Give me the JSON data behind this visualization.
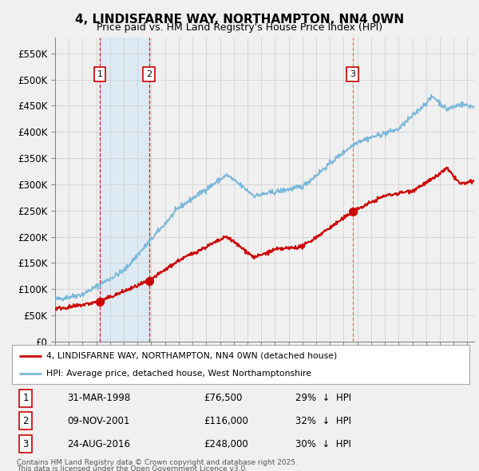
{
  "title": "4, LINDISFARNE WAY, NORTHAMPTON, NN4 0WN",
  "subtitle": "Price paid vs. HM Land Registry's House Price Index (HPI)",
  "ylabel_ticks": [
    "£0",
    "£50K",
    "£100K",
    "£150K",
    "£200K",
    "£250K",
    "£300K",
    "£350K",
    "£400K",
    "£450K",
    "£500K",
    "£550K"
  ],
  "ytick_values": [
    0,
    50000,
    100000,
    150000,
    200000,
    250000,
    300000,
    350000,
    400000,
    450000,
    500000,
    550000
  ],
  "ylim": [
    0,
    580000
  ],
  "xlim_start": 1995.0,
  "xlim_end": 2025.5,
  "sales": [
    {
      "index": 1,
      "date": "31-MAR-1998",
      "price": 76500,
      "year": 1998.25,
      "pct": "29%",
      "dir": "↓"
    },
    {
      "index": 2,
      "date": "09-NOV-2001",
      "price": 116000,
      "year": 2001.85,
      "pct": "32%",
      "dir": "↓"
    },
    {
      "index": 3,
      "date": "24-AUG-2016",
      "price": 248000,
      "year": 2016.65,
      "pct": "30%",
      "dir": "↓"
    }
  ],
  "legend_line1": "4, LINDISFARNE WAY, NORTHAMPTON, NN4 0WN (detached house)",
  "legend_line2": "HPI: Average price, detached house, West Northamptonshire",
  "footnote1": "Contains HM Land Registry data © Crown copyright and database right 2025.",
  "footnote2": "This data is licensed under the Open Government Licence v3.0.",
  "red_color": "#cc0000",
  "blue_color": "#7ab8d9",
  "vline_color": "#cc0000",
  "bg_shade_color": "#d6e8f5",
  "grid_color": "#cccccc",
  "box_edge_color": "#cc0000",
  "fig_bg": "#f0f0f0",
  "plot_bg": "#f0f0f0"
}
